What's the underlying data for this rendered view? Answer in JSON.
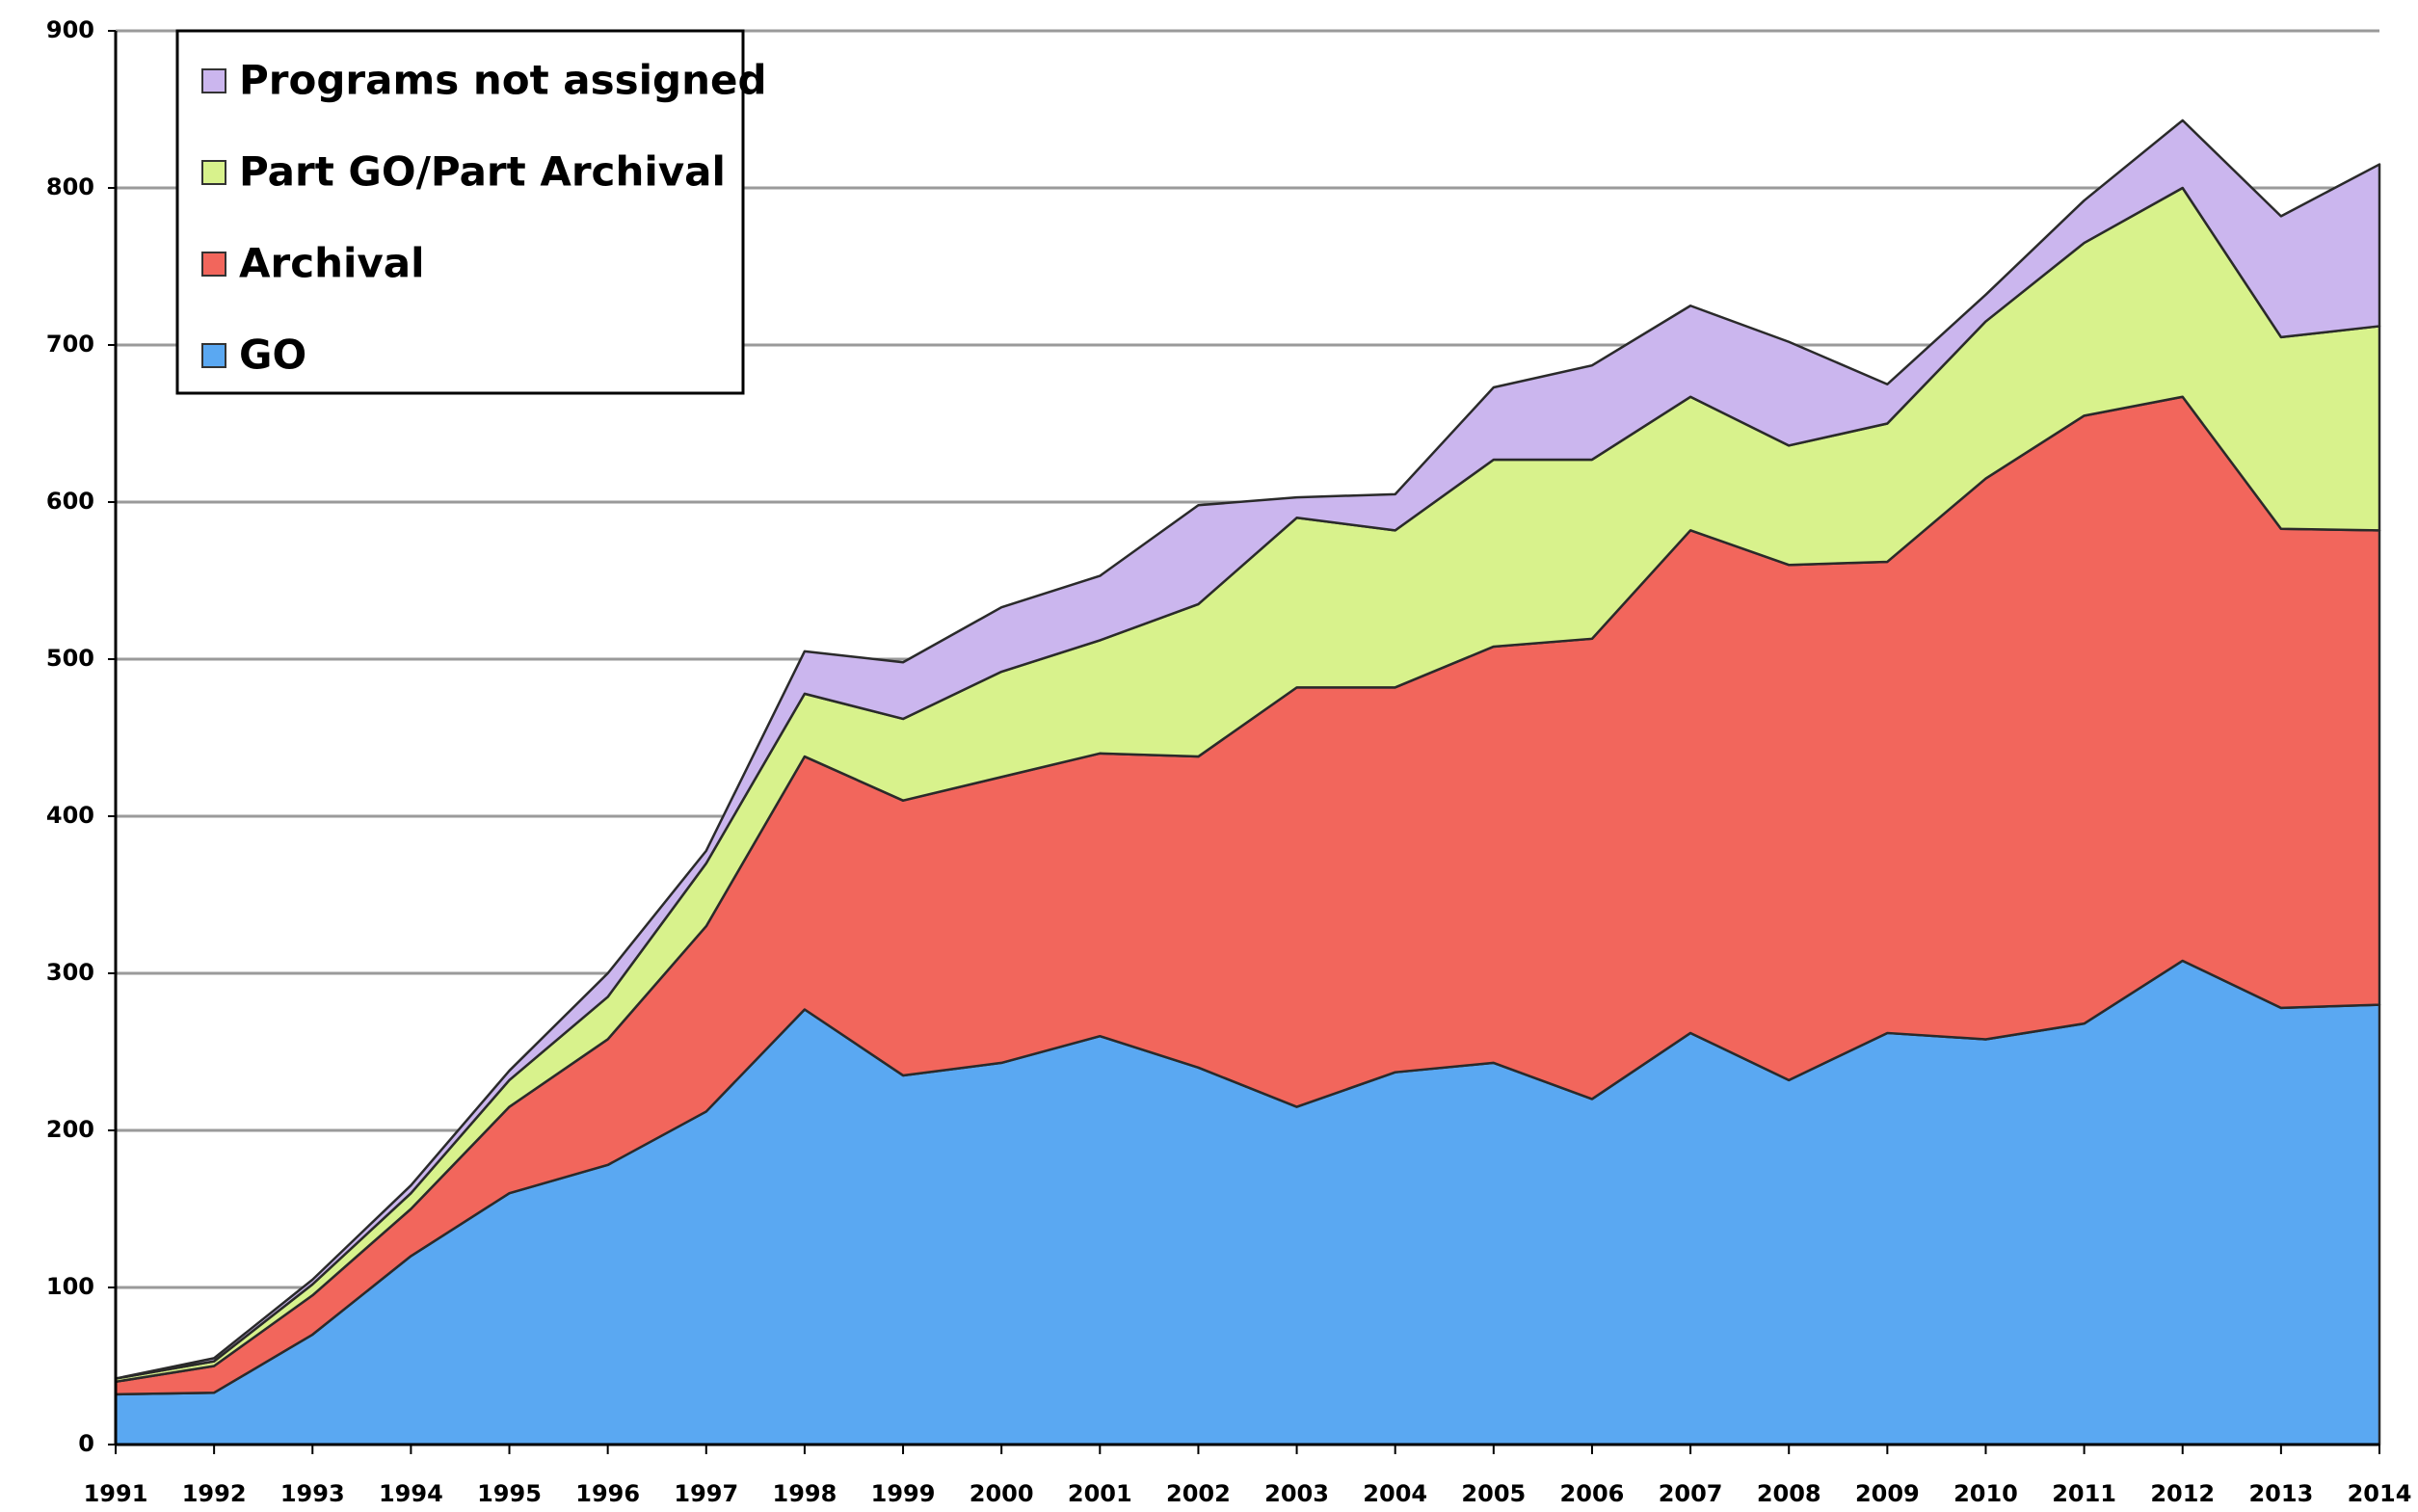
{
  "chart_data": {
    "type": "stacked_area",
    "categories": [
      "1991",
      "1992",
      "1993",
      "1994",
      "1995",
      "1996",
      "1997",
      "1998",
      "1999",
      "2000",
      "2001",
      "2002",
      "2003",
      "2004",
      "2005",
      "2006",
      "2007",
      "2008",
      "2009",
      "2010",
      "2011",
      "2012",
      "2013",
      "2014"
    ],
    "series": [
      {
        "name": "GO",
        "color": "#5aa8f2",
        "values": [
          32,
          33,
          70,
          120,
          160,
          178,
          212,
          277,
          235,
          243,
          260,
          240,
          215,
          237,
          243,
          220,
          262,
          232,
          262,
          258,
          268,
          308,
          278,
          280
        ]
      },
      {
        "name": "Archival",
        "color": "#f2665c",
        "values": [
          8,
          17,
          25,
          30,
          55,
          80,
          118,
          161,
          175,
          182,
          180,
          198,
          267,
          245,
          265,
          293,
          320,
          328,
          300,
          357,
          387,
          359,
          305,
          302
        ]
      },
      {
        "name": "Part GO/Part Archival",
        "color": "#d8f28c",
        "values": [
          2,
          3,
          7,
          10,
          17,
          27,
          40,
          40,
          52,
          67,
          72,
          97,
          108,
          100,
          119,
          114,
          85,
          76,
          88,
          100,
          110,
          133,
          122,
          130
        ]
      },
      {
        "name": "Programs not assigned",
        "color": "#cbb6ee",
        "values": [
          0,
          2,
          3,
          5,
          6,
          15,
          8,
          27,
          36,
          41,
          41,
          63,
          13,
          23,
          46,
          60,
          58,
          66,
          25,
          17,
          27,
          43,
          77,
          103
        ]
      }
    ],
    "ylim": [
      0,
      900
    ],
    "yticks": [
      0,
      100,
      200,
      300,
      400,
      500,
      600,
      700,
      800,
      900
    ],
    "grid": true
  }
}
